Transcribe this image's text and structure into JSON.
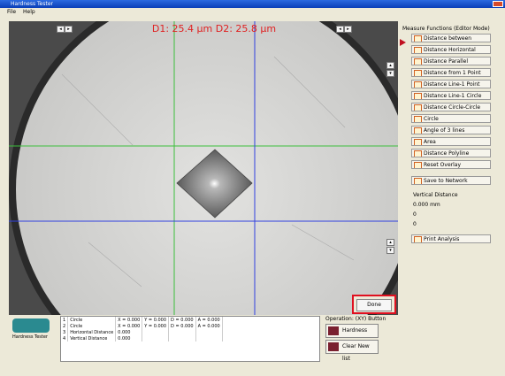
{
  "window": {
    "title": "Hardness Tester"
  },
  "menu": [
    "File",
    "Help"
  ],
  "readout": "D1: 25.4 µm   D2: 25.8 µm",
  "done_button": "Done",
  "functions_header": "Measure Functions (Editor Mode)",
  "functions": [
    "Distance between",
    "Distance Horizontal",
    "Distance Parallel",
    "Distance from 1 Point",
    "Distance Line-1 Point",
    "Distance Line-1 Circle",
    "Distance Circle-Circle",
    "Circle",
    "Angle of 3 lines",
    "Area",
    "Distance Polyline",
    "Reset Overlay"
  ],
  "save_button": "Save to Network",
  "vertical_label": "Vertical Distance",
  "vertical_value": "0.000 mm",
  "extra_values": [
    "0",
    "0"
  ],
  "print_button": "Print Analysis",
  "logo_text": "Hardness Tester",
  "table": {
    "rows": [
      [
        "1",
        "Circle",
        "X = 0.000",
        "Y = 0.000",
        "D = 0.000",
        "A = 0.000"
      ],
      [
        "2",
        "Circle",
        "X = 0.000",
        "Y = 0.000",
        "D = 0.000",
        "A = 0.000"
      ],
      [
        "3",
        "Horizontal Distance",
        "0.000",
        "",
        "",
        ""
      ],
      [
        "4",
        "Vertical Distance",
        "0.000",
        "",
        "",
        ""
      ]
    ]
  },
  "operation_label": "Operation: (XY) Button",
  "operation_buttons": [
    "Hardness",
    "Clear New list"
  ]
}
